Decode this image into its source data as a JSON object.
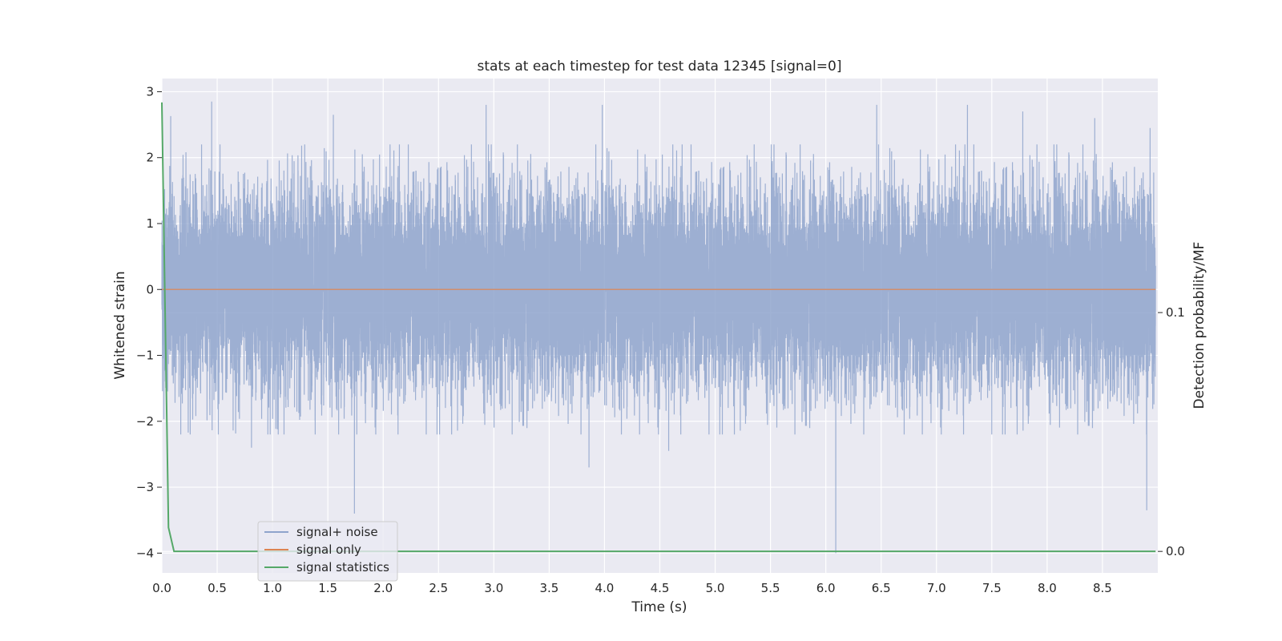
{
  "chart_data": {
    "type": "line",
    "title": "stats at each timestep for test data 12345 [signal=0]",
    "xlabel": "Time (s)",
    "ylabel": "Whitened strain",
    "ylabel_right": "Detection probability/MF",
    "xlim": [
      0.0,
      9.0
    ],
    "ylim": [
      -4.3,
      3.2
    ],
    "ylim_right": [
      -0.009,
      0.198
    ],
    "x_ticks": [
      "0.0",
      "0.5",
      "1.0",
      "1.5",
      "2.0",
      "2.5",
      "3.0",
      "3.5",
      "4.0",
      "4.5",
      "5.0",
      "5.5",
      "6.0",
      "6.5",
      "7.0",
      "7.5",
      "8.0",
      "8.5"
    ],
    "y_ticks": [
      "3",
      "2",
      "1",
      "0",
      "−1",
      "−2",
      "−3",
      "−4"
    ],
    "y_ticks_right": [
      "0.1",
      "0.0"
    ],
    "grid": true,
    "legend_position": "lower-left",
    "series": [
      {
        "name": "signal+ noise",
        "axis": "left",
        "color": "#8fa4cc",
        "description_of_shape": "dense gaussian noise, mostly within ±1.6, peaks up to ~2.85, dips down to ~-4.0",
        "x_range": [
          0.0,
          8.98
        ],
        "sample_rate_hz": 2048,
        "noise_std": 0.75,
        "notable_peaks": [
          {
            "x": 0.45,
            "y": 2.85
          },
          {
            "x": 0.08,
            "y": 2.63
          },
          {
            "x": 1.55,
            "y": 2.65
          },
          {
            "x": 2.93,
            "y": 2.8
          },
          {
            "x": 3.98,
            "y": 2.8
          },
          {
            "x": 6.46,
            "y": 2.8
          },
          {
            "x": 7.28,
            "y": 2.8
          },
          {
            "x": 7.78,
            "y": 2.7
          },
          {
            "x": 8.43,
            "y": 2.6
          },
          {
            "x": 8.93,
            "y": 2.45
          }
        ],
        "notable_dips": [
          {
            "x": 1.74,
            "y": -3.4
          },
          {
            "x": 3.86,
            "y": -2.7
          },
          {
            "x": 6.09,
            "y": -4.0
          },
          {
            "x": 8.9,
            "y": -3.35
          },
          {
            "x": 0.81,
            "y": -2.4
          },
          {
            "x": 4.58,
            "y": -2.45
          }
        ]
      },
      {
        "name": "signal only",
        "axis": "left",
        "color": "#dd8452",
        "x": [
          0.0,
          8.98
        ],
        "y": [
          0.0,
          0.0
        ]
      },
      {
        "name": "signal statistics",
        "axis": "right",
        "color": "#55a868",
        "x": [
          0.0,
          0.06,
          0.11,
          8.98
        ],
        "y": [
          0.188,
          0.01,
          0.0,
          0.0
        ]
      }
    ]
  },
  "colors": {
    "plot_background": "#eaeaf2",
    "grid": "#ffffff",
    "noise": "#8fa4cc",
    "signal_only": "#dd8452",
    "signal_statistics": "#55a868"
  }
}
